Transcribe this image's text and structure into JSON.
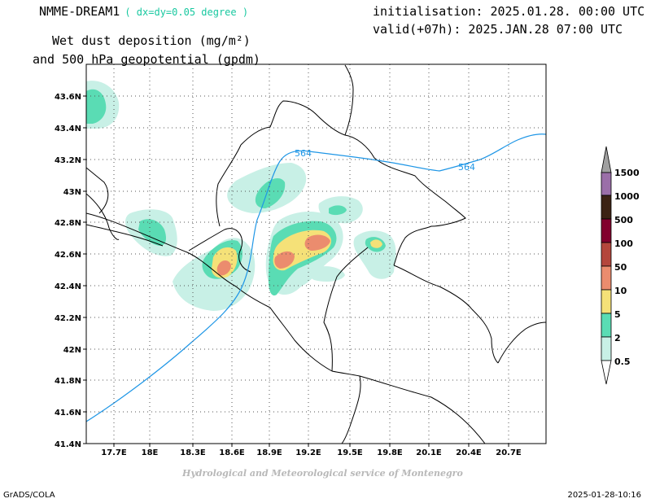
{
  "header": {
    "model": "NMME-DREAM1",
    "resolution": "( dx=dy=0.05 degree )",
    "title_line1": "Wet dust deposition (mg/m²)",
    "title_line2": "and 500 hPa geopotential (gpdm)",
    "initialisation": "initialisation: 2025.01.28. 00:00 UTC",
    "valid": "valid(+07h): 2025.JAN.28 07:00 UTC"
  },
  "map": {
    "lon_ticks": [
      "17.7E",
      "18E",
      "18.3E",
      "18.6E",
      "18.9E",
      "19.2E",
      "19.5E",
      "19.8E",
      "20.1E",
      "20.4E",
      "20.7E"
    ],
    "lat_ticks": [
      "43.6N",
      "43.4N",
      "43.2N",
      "43N",
      "42.8N",
      "42.6N",
      "42.4N",
      "42.2N",
      "42N",
      "41.8N",
      "41.6N",
      "41.4N"
    ],
    "lon_range": [
      17.52,
      20.96
    ],
    "lat_range": [
      41.4,
      43.74
    ],
    "contour_labels": [
      "564",
      "564"
    ],
    "contour_color": "#1e96e6"
  },
  "legend": {
    "labels": [
      "1500",
      "1000",
      "500",
      "100",
      "50",
      "10",
      "5",
      "2",
      "0.5"
    ],
    "colors": [
      "#a0a0a0",
      "#9b6fa8",
      "#3c2314",
      "#82002d",
      "#b4463c",
      "#eb8c6e",
      "#f5e178",
      "#5adcb4",
      "#c8f0e6"
    ]
  },
  "footer": {
    "credit": "Hydrological and Meteorological service of Montenegro",
    "left": "GrADS/COLA",
    "right": "2025-01-28-10:16"
  }
}
